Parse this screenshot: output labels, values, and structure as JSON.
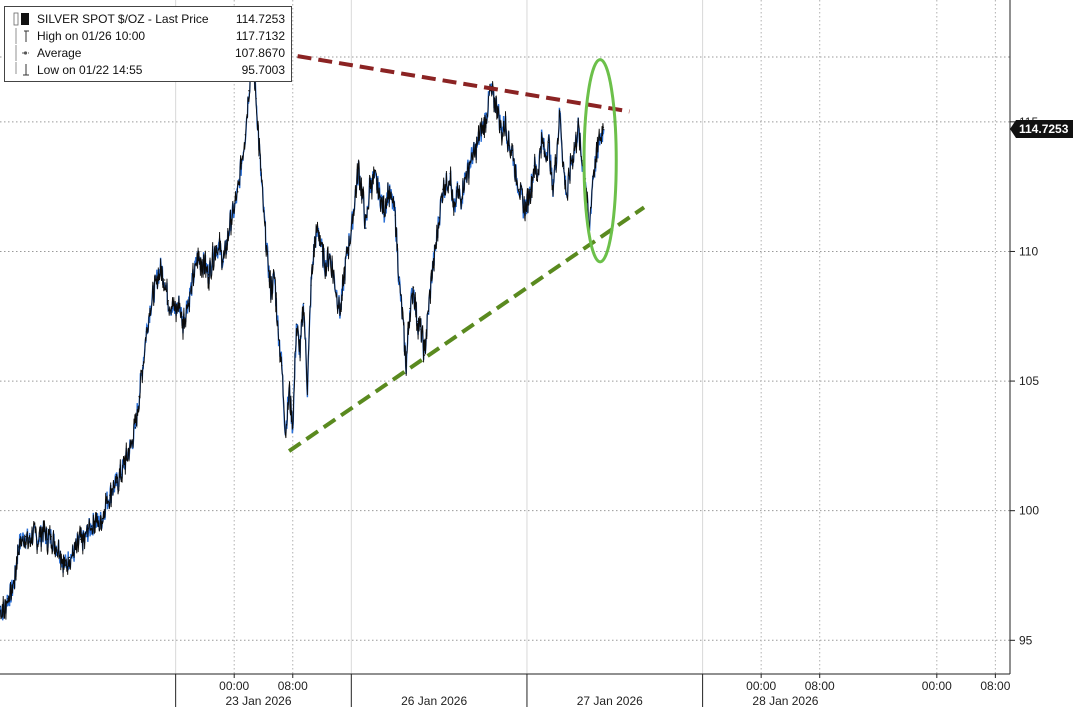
{
  "legend": {
    "title": "SILVER SPOT $/OZ - Last Price",
    "last": "114.7253",
    "high_label": "High on 01/26 10:00",
    "high": "117.7132",
    "avg_label": "Average",
    "avg": "107.8670",
    "low_label": "Low on 01/22 14:55",
    "low": "95.7003"
  },
  "last_price_label": "114.7253",
  "colors": {
    "price_line": "#0b0b0b",
    "price_blue": "#2a6fd6",
    "resistance": "#8b2323",
    "support": "#5a8a1f",
    "ellipse": "#6cc04a",
    "last_box": "#111111"
  },
  "chart_data": {
    "type": "line",
    "title": "SILVER SPOT $/OZ - Last Price",
    "xlabel": "",
    "ylabel": "",
    "ylim": [
      93.7,
      119.7
    ],
    "yticks": [
      95,
      100,
      105,
      110,
      115
    ],
    "xlim": [
      -32,
      106
    ],
    "x_unit": "hours since 00:00 23 Jan 2026",
    "x_ticks": [
      {
        "x": 0,
        "label": "00:00"
      },
      {
        "x": 8,
        "label": "08:00"
      },
      {
        "x": 72,
        "label": "00:00"
      },
      {
        "x": 80,
        "label": "08:00"
      },
      {
        "x": 96,
        "label": "00:00"
      },
      {
        "x": 104,
        "label": "08:00"
      }
    ],
    "day_labels": [
      {
        "x": 4,
        "label": "23 Jan 2026"
      },
      {
        "x": 28,
        "label": "26 Jan 2026"
      },
      {
        "x": 52,
        "label": "27 Jan 2026"
      },
      {
        "x": 76,
        "label": "28 Jan 2026"
      }
    ],
    "series": [
      {
        "name": "SILVER SPOT $/OZ",
        "points": [
          [
            -32,
            96.3
          ],
          [
            -31.5,
            96.1
          ],
          [
            -31,
            96.6
          ],
          [
            -30.5,
            96.8
          ],
          [
            -30,
            97.3
          ],
          [
            -29.5,
            98.6
          ],
          [
            -29,
            98.9
          ],
          [
            -28.5,
            99.0
          ],
          [
            -28,
            98.8
          ],
          [
            -27.5,
            99.1
          ],
          [
            -27,
            98.9
          ],
          [
            -26.5,
            99.0
          ],
          [
            -26,
            99.2
          ],
          [
            -25.5,
            98.9
          ],
          [
            -25,
            99.0
          ],
          [
            -24.5,
            98.7
          ],
          [
            -24,
            98.6
          ],
          [
            -23.5,
            98.1
          ],
          [
            -23,
            97.9
          ],
          [
            -22.5,
            98.2
          ],
          [
            -22,
            98.3
          ],
          [
            -21.5,
            98.6
          ],
          [
            -21,
            98.9
          ],
          [
            -20.5,
            98.8
          ],
          [
            -20,
            99.2
          ],
          [
            -19.5,
            99.4
          ],
          [
            -19,
            99.6
          ],
          [
            -18.5,
            99.5
          ],
          [
            -18,
            99.7
          ],
          [
            -17.5,
            100.3
          ],
          [
            -17,
            100.6
          ],
          [
            -16.5,
            100.9
          ],
          [
            -16,
            101.1
          ],
          [
            -15.5,
            101.4
          ],
          [
            -15,
            101.8
          ],
          [
            -14.5,
            102.2
          ],
          [
            -14,
            102.6
          ],
          [
            -13.5,
            103.2
          ],
          [
            -13,
            104.4
          ],
          [
            -12.5,
            105.6
          ],
          [
            -12,
            106.9
          ],
          [
            -11.5,
            107.8
          ],
          [
            -11,
            108.4
          ],
          [
            -10.5,
            109.0
          ],
          [
            -10,
            109.4
          ],
          [
            -9.5,
            108.9
          ],
          [
            -9,
            108.1
          ],
          [
            -8.5,
            107.8
          ],
          [
            -8,
            107.7
          ],
          [
            -7.5,
            108.0
          ],
          [
            -7,
            107.2
          ],
          [
            -6.5,
            107.9
          ],
          [
            -6,
            108.4
          ],
          [
            -5.5,
            109.1
          ],
          [
            -5,
            109.8
          ],
          [
            -4.5,
            109.6
          ],
          [
            -4,
            109.5
          ],
          [
            -3.5,
            109.1
          ],
          [
            -3,
            109.7
          ],
          [
            -2.5,
            110.2
          ],
          [
            -2,
            110.1
          ],
          [
            -1.5,
            109.6
          ],
          [
            -1,
            110.3
          ],
          [
            -0.5,
            111.2
          ],
          [
            0,
            111.6
          ],
          [
            0.5,
            112.3
          ],
          [
            1,
            113.4
          ],
          [
            1.5,
            114.5
          ],
          [
            2,
            116.2
          ],
          [
            2.5,
            117.7
          ],
          [
            3,
            115.9
          ],
          [
            3.5,
            113.6
          ],
          [
            4,
            111.6
          ],
          [
            4.5,
            109.9
          ],
          [
            5,
            108.5
          ],
          [
            5.5,
            109.0
          ],
          [
            6,
            107.0
          ],
          [
            6.5,
            105.6
          ],
          [
            7,
            103.0
          ],
          [
            7.5,
            104.6
          ],
          [
            8,
            103.2
          ],
          [
            8.5,
            107.2
          ],
          [
            9,
            106.1
          ],
          [
            9.5,
            108.0
          ],
          [
            10,
            104.7
          ],
          [
            10.5,
            108.7
          ],
          [
            11,
            110.4
          ],
          [
            11.5,
            110.8
          ],
          [
            12,
            110.0
          ],
          [
            12.5,
            109.4
          ],
          [
            13,
            109.9
          ],
          [
            13.5,
            109.2
          ],
          [
            14,
            108.4
          ],
          [
            14.5,
            107.6
          ],
          [
            15,
            109.0
          ],
          [
            15.5,
            110.1
          ],
          [
            16,
            110.8
          ],
          [
            16.5,
            112.1
          ],
          [
            17,
            113.2
          ],
          [
            17.5,
            112.2
          ],
          [
            18,
            110.9
          ],
          [
            18.5,
            112.5
          ],
          [
            19,
            112.8
          ],
          [
            19.5,
            112.6
          ],
          [
            20,
            112.1
          ],
          [
            20.5,
            111.5
          ],
          [
            21,
            112.3
          ],
          [
            21.5,
            112.0
          ],
          [
            22,
            111.4
          ],
          [
            22.5,
            109.0
          ],
          [
            23,
            107.4
          ],
          [
            23.5,
            105.6
          ],
          [
            24,
            107.8
          ],
          [
            24.5,
            108.6
          ],
          [
            25,
            107.3
          ],
          [
            25.5,
            107.0
          ],
          [
            26,
            106.0
          ],
          [
            26.5,
            107.6
          ],
          [
            27,
            109.1
          ],
          [
            27.5,
            110.1
          ],
          [
            28,
            111.3
          ],
          [
            28.5,
            112.4
          ],
          [
            29,
            112.6
          ],
          [
            29.5,
            113.0
          ],
          [
            30,
            111.4
          ],
          [
            30.5,
            112.3
          ],
          [
            31,
            112.0
          ],
          [
            31.5,
            112.8
          ],
          [
            32,
            113.2
          ],
          [
            32.5,
            113.7
          ],
          [
            33,
            113.9
          ],
          [
            33.5,
            114.4
          ],
          [
            34,
            114.8
          ],
          [
            34.5,
            115.3
          ],
          [
            35,
            116.2
          ],
          [
            35.5,
            115.8
          ],
          [
            36,
            115.6
          ],
          [
            36.5,
            114.6
          ],
          [
            37,
            115.0
          ],
          [
            37.5,
            114.2
          ],
          [
            38,
            113.9
          ],
          [
            38.5,
            112.9
          ],
          [
            39,
            112.4
          ],
          [
            39.5,
            111.7
          ],
          [
            40,
            111.8
          ],
          [
            40.5,
            112.4
          ],
          [
            41,
            113.3
          ],
          [
            41.5,
            113.0
          ],
          [
            42,
            114.4
          ],
          [
            42.5,
            113.7
          ],
          [
            43,
            114.2
          ],
          [
            43.5,
            112.4
          ],
          [
            44,
            113.6
          ],
          [
            44.5,
            115.4
          ],
          [
            45,
            113.2
          ],
          [
            45.5,
            112.1
          ],
          [
            46,
            113.4
          ],
          [
            46.5,
            113.9
          ],
          [
            47,
            114.8
          ],
          [
            47.5,
            113.5
          ],
          [
            48,
            112.8
          ],
          [
            48.5,
            110.7
          ],
          [
            49,
            112.9
          ],
          [
            49.5,
            113.6
          ],
          [
            50,
            114.4
          ],
          [
            50.5,
            114.7
          ]
        ]
      }
    ],
    "annotations": [
      {
        "type": "trendline",
        "name": "resistance",
        "from": [
          3,
          117.8
        ],
        "to": [
          54,
          115.4
        ]
      },
      {
        "type": "trendline",
        "name": "support",
        "from": [
          7.5,
          102.3
        ],
        "to": [
          56,
          111.7
        ]
      },
      {
        "type": "ellipse",
        "name": "highlight",
        "center": [
          50,
          113.5
        ],
        "rx_hours": 2.2,
        "ry": 3.9
      }
    ]
  }
}
